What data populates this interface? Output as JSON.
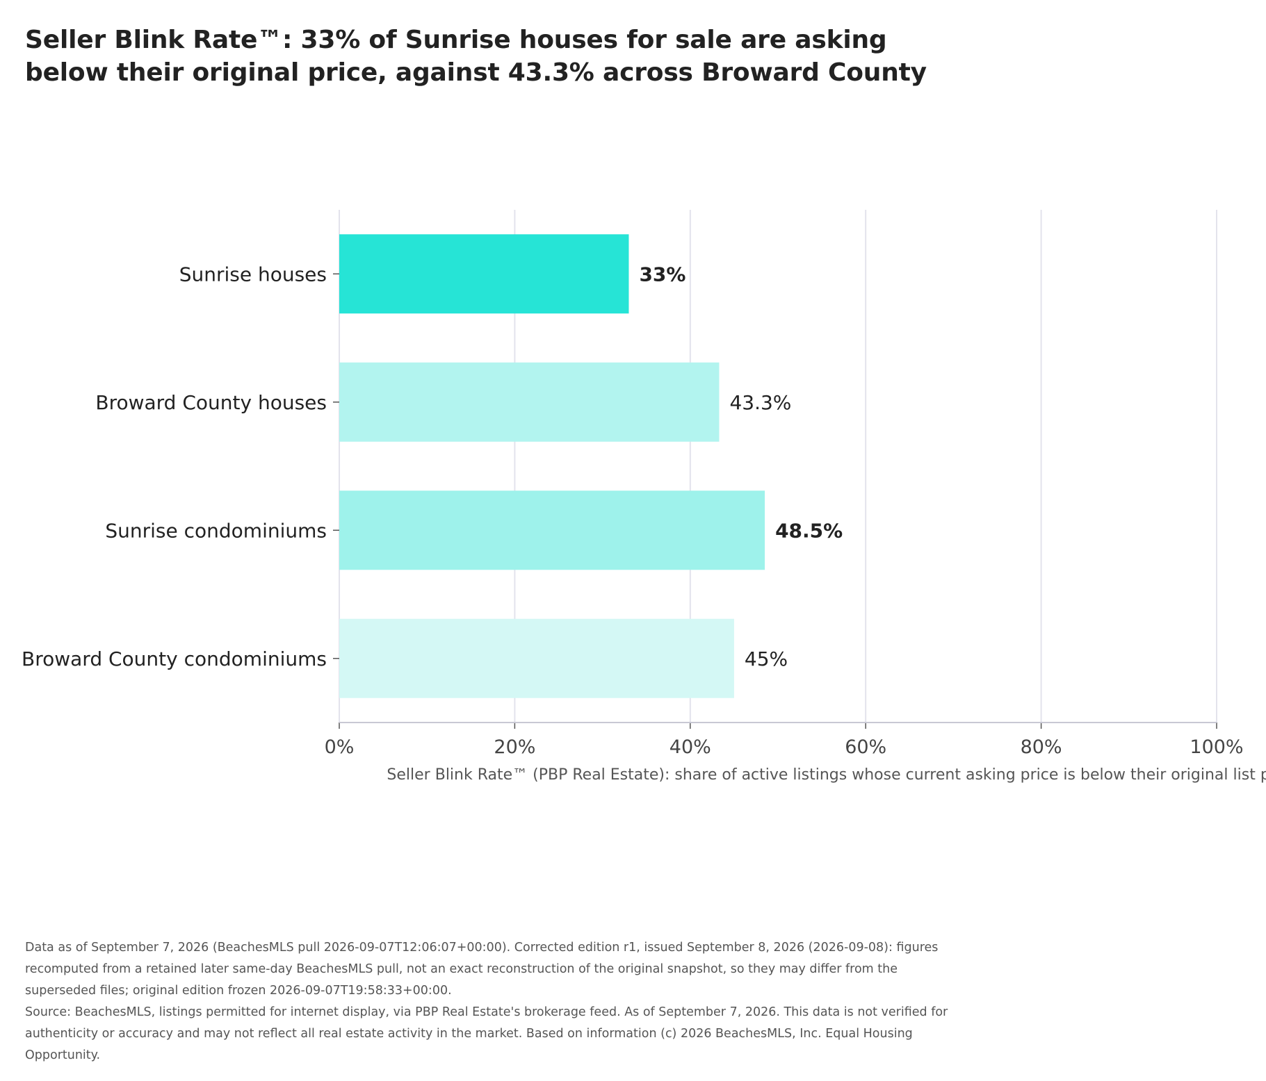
{
  "chart_data": {
    "type": "bar",
    "orientation": "horizontal",
    "title": "Seller Blink Rate™: 33% of Sunrise houses for sale are asking below their original price, against 43.3% across Broward County",
    "title_lines": [
      "Seller Blink Rate™: 33% of Sunrise houses for sale are asking",
      "below their original price, against 43.3% across Broward County"
    ],
    "xlabel": "Seller Blink Rate™ (PBP Real Estate): share of active listings whose current asking price is below their original list price",
    "ylabel": "",
    "xlim": [
      0,
      100
    ],
    "x_ticks": [
      "0%",
      "20%",
      "40%",
      "60%",
      "80%",
      "100%"
    ],
    "grid": true,
    "categories": [
      "Sunrise houses",
      "Broward County houses",
      "Sunrise condominiums",
      "Broward County condominiums"
    ],
    "values": [
      33,
      43.3,
      48.5,
      45
    ],
    "data_labels": [
      "33%",
      "43.3%",
      "48.5%",
      "45%"
    ],
    "bold_labels": [
      true,
      false,
      true,
      false
    ],
    "colors": [
      "#26e4d6",
      "#b2f4ef",
      "#9ef2eb",
      "#d4f8f5"
    ],
    "grid_color": "#e3e3ec",
    "axis_color": "#c8c8d4"
  },
  "footer": {
    "note": "Data as of September 7, 2026 (BeachesMLS pull 2026-09-07T12:06:07+00:00). Corrected edition r1, issued September 8, 2026 (2026-09-08): figures recomputed from a retained later same-day BeachesMLS pull, not an exact reconstruction of the original snapshot, so they may differ from the superseded files; original edition frozen 2026-09-07T19:58:33+00:00.",
    "source": "Source: BeachesMLS, listings permitted for internet display, via PBP Real Estate's brokerage feed. As of September 7, 2026. This data is not verified for authenticity or accuracy and may not reflect all real estate activity in the market. Based on information (c) 2026 BeachesMLS, Inc. Equal Housing Opportunity."
  }
}
